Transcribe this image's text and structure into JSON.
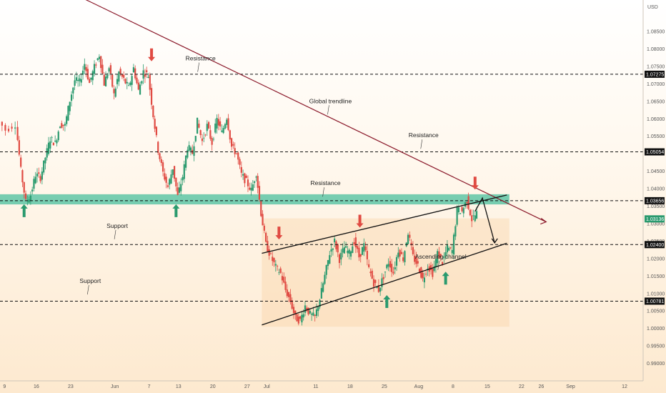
{
  "chart_data": {
    "type": "candlestick",
    "currency": "USD",
    "y_ticks": [
      0.99,
      0.995,
      1.0,
      1.005,
      1.01,
      1.015,
      1.02,
      1.025,
      1.03,
      1.035,
      1.04,
      1.045,
      1.05,
      1.055,
      1.06,
      1.065,
      1.07,
      1.075,
      1.08,
      1.085
    ],
    "y_tick_labels": [
      "0.99000",
      "0.99500",
      "1.00000",
      "1.00500",
      "1.01000",
      "1.01500",
      "1.02000",
      "1.02500",
      "1.03000",
      "1.03500",
      "1.04000",
      "1.04500",
      "1.05000",
      "1.05500",
      "1.06000",
      "1.06500",
      "1.07000",
      "1.07500",
      "1.08000",
      "1.08500"
    ],
    "ylim": [
      0.985,
      1.094
    ],
    "x_labels": [
      {
        "text": "9",
        "day": -3.5
      },
      {
        "text": "16",
        "day": 3
      },
      {
        "text": "23",
        "day": 10
      },
      {
        "text": "Jun",
        "day": 19
      },
      {
        "text": "7",
        "day": 26
      },
      {
        "text": "13",
        "day": 32
      },
      {
        "text": "20",
        "day": 39
      },
      {
        "text": "27",
        "day": 46
      },
      {
        "text": "Jul",
        "day": 50
      },
      {
        "text": "11",
        "day": 60
      },
      {
        "text": "18",
        "day": 67
      },
      {
        "text": "25",
        "day": 74
      },
      {
        "text": "Aug",
        "day": 81
      },
      {
        "text": "8",
        "day": 88
      },
      {
        "text": "15",
        "day": 95
      },
      {
        "text": "22",
        "day": 102
      },
      {
        "text": "26",
        "day": 106
      },
      {
        "text": "Sep",
        "day": 112
      },
      {
        "text": "12",
        "day": 123
      }
    ],
    "xlim": [
      -5,
      130
    ],
    "levels": [
      {
        "value": 1.07275,
        "label": "1.07275"
      },
      {
        "value": 1.05054,
        "label": "1.05054"
      },
      {
        "value": 1.03656,
        "label": "1.03656"
      },
      {
        "value": 1.024,
        "label": "1.02400"
      },
      {
        "value": 1.00781,
        "label": "1.00781"
      }
    ],
    "current_price": {
      "value": 1.03136,
      "label": "1.03136"
    },
    "support_zone": [
      1.0355,
      1.0384
    ],
    "trendline": {
      "from": [
        -0.8,
        1.1035
      ],
      "to": [
        107,
        1.0305
      ]
    },
    "channel_top": {
      "from": [
        49,
        1.0215
      ],
      "to": [
        99,
        1.0382
      ]
    },
    "channel_bottom": {
      "from": [
        49,
        1.001
      ],
      "to": [
        99,
        1.0244
      ]
    },
    "channel_fill_bounds": {
      "x": [
        49,
        99.5
      ],
      "y": [
        1.0005,
        1.0315
      ]
    },
    "projection": [
      [
        94,
        1.0373
      ],
      [
        96.5,
        1.0245
      ]
    ],
    "annotations": [
      {
        "text": "Resistance",
        "day": 36.5,
        "price": 1.0767
      },
      {
        "text": "Global trendline",
        "day": 63,
        "price": 1.0645
      },
      {
        "text": "Resistance",
        "day": 82,
        "price": 1.0547
      },
      {
        "text": "Resistance",
        "day": 62,
        "price": 1.041
      },
      {
        "text": "Support",
        "day": 19.5,
        "price": 1.0288
      },
      {
        "text": "Support",
        "day": 14,
        "price": 1.013
      },
      {
        "text": "Ascending channel",
        "day": 85.5,
        "price": 1.02
      }
    ],
    "arrows": [
      {
        "dir": "down",
        "day": 26.5,
        "price": 1.0785
      },
      {
        "dir": "up",
        "day": 0.5,
        "price": 1.0335
      },
      {
        "dir": "up",
        "day": 31.5,
        "price": 1.0335
      },
      {
        "dir": "down",
        "day": 52.5,
        "price": 1.0275
      },
      {
        "dir": "down",
        "day": 69,
        "price": 1.0309
      },
      {
        "dir": "up",
        "day": 74.5,
        "price": 1.0075
      },
      {
        "dir": "up",
        "day": 86.5,
        "price": 1.0142
      },
      {
        "dir": "down",
        "day": 92.5,
        "price": 1.0418
      }
    ],
    "close_path": [
      [
        -5,
        1.0605
      ],
      [
        -3,
        1.0568
      ],
      [
        -1,
        1.0585
      ],
      [
        0,
        1.0452
      ],
      [
        1,
        1.0362
      ],
      [
        2,
        1.0382
      ],
      [
        3,
        1.044
      ],
      [
        4,
        1.0432
      ],
      [
        5,
        1.049
      ],
      [
        6,
        1.0543
      ],
      [
        7,
        1.053
      ],
      [
        8,
        1.0585
      ],
      [
        9,
        1.058
      ],
      [
        10,
        1.0653
      ],
      [
        11,
        1.071
      ],
      [
        12,
        1.0705
      ],
      [
        13,
        1.0758
      ],
      [
        14,
        1.0702
      ],
      [
        15,
        1.0748
      ],
      [
        16,
        1.0783
      ],
      [
        17,
        1.0701
      ],
      [
        18,
        1.0745
      ],
      [
        19,
        1.0668
      ],
      [
        20,
        1.0733
      ],
      [
        21,
        1.0712
      ],
      [
        22,
        1.0688
      ],
      [
        23,
        1.0745
      ],
      [
        24,
        1.068
      ],
      [
        25,
        1.0735
      ],
      [
        26,
        1.0724
      ],
      [
        27,
        1.061
      ],
      [
        28,
        1.051
      ],
      [
        29,
        1.0445
      ],
      [
        30,
        1.0405
      ],
      [
        31,
        1.046
      ],
      [
        32,
        1.0378
      ],
      [
        33,
        1.0435
      ],
      [
        34,
        1.052
      ],
      [
        35,
        1.0502
      ],
      [
        36,
        1.0592
      ],
      [
        37,
        1.0535
      ],
      [
        38,
        1.058
      ],
      [
        39,
        1.0531
      ],
      [
        40,
        1.0598
      ],
      [
        41,
        1.056
      ],
      [
        42,
        1.0605
      ],
      [
        43,
        1.052
      ],
      [
        44,
        1.05
      ],
      [
        45,
        1.044
      ],
      [
        46,
        1.042
      ],
      [
        47,
        1.0395
      ],
      [
        48,
        1.0445
      ],
      [
        49,
        1.033
      ],
      [
        50,
        1.024
      ],
      [
        51,
        1.0205
      ],
      [
        52,
        1.0175
      ],
      [
        53,
        1.0158
      ],
      [
        54,
        1.011
      ],
      [
        55,
        1.0078
      ],
      [
        56,
        1.003
      ],
      [
        57,
        1.0022
      ],
      [
        58,
        1.0065
      ],
      [
        59,
        1.004
      ],
      [
        60,
        1.0032
      ],
      [
        61,
        1.0085
      ],
      [
        62,
        1.015
      ],
      [
        63,
        1.0215
      ],
      [
        64,
        1.025
      ],
      [
        65,
        1.0198
      ],
      [
        66,
        1.0232
      ],
      [
        67,
        1.0215
      ],
      [
        68,
        1.025
      ],
      [
        69,
        1.0205
      ],
      [
        70,
        1.0238
      ],
      [
        71,
        1.017
      ],
      [
        72,
        1.013
      ],
      [
        73,
        1.011
      ],
      [
        74,
        1.015
      ],
      [
        75,
        1.019
      ],
      [
        76,
        1.016
      ],
      [
        77,
        1.0225
      ],
      [
        78,
        1.02
      ],
      [
        79,
        1.0275
      ],
      [
        80,
        1.0205
      ],
      [
        81,
        1.018
      ],
      [
        82,
        1.014
      ],
      [
        83,
        1.0178
      ],
      [
        84,
        1.0158
      ],
      [
        85,
        1.0215
      ],
      [
        86,
        1.019
      ],
      [
        87,
        1.023
      ],
      [
        88,
        1.0222
      ],
      [
        89,
        1.034
      ],
      [
        90,
        1.0335
      ],
      [
        91,
        1.0368
      ],
      [
        92,
        1.0312
      ],
      [
        93,
        1.033
      ]
    ]
  }
}
